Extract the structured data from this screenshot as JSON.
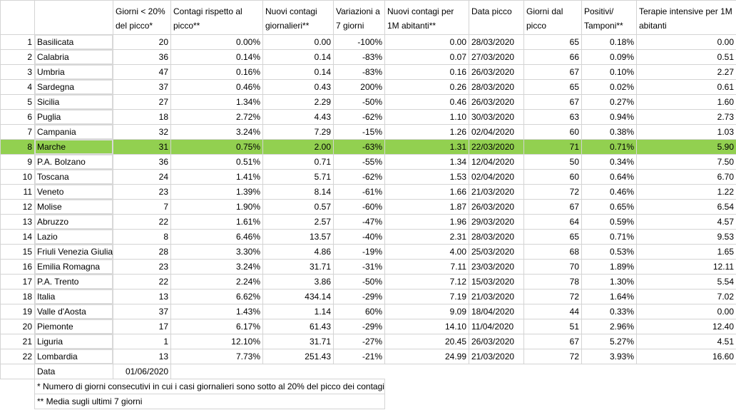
{
  "headers": [
    "",
    "",
    "Giorni < 20% del picco*",
    "Contagi rispetto al picco**",
    "Nuovi contagi giornalieri**",
    "Variazioni a 7 giorni",
    "Nuovi contagi per 1M abitanti**",
    "Data picco",
    "Giorni dal picco",
    "Positivi/ Tamponi**",
    "Terapie intensive per 1M abitanti"
  ],
  "rows": [
    {
      "n": "1",
      "region": "Basilicata",
      "giorni": "20",
      "contagi_picco": "0.00%",
      "nuovi": "0.00",
      "var7": "-100%",
      "per1m": "0.00",
      "data_picco": "28/03/2020",
      "giorni_dal": "65",
      "pos_tamp": "0.18%",
      "ti": "0.00"
    },
    {
      "n": "2",
      "region": "Calabria",
      "giorni": "36",
      "contagi_picco": "0.14%",
      "nuovi": "0.14",
      "var7": "-83%",
      "per1m": "0.07",
      "data_picco": "27/03/2020",
      "giorni_dal": "66",
      "pos_tamp": "0.09%",
      "ti": "0.51"
    },
    {
      "n": "3",
      "region": "Umbria",
      "giorni": "47",
      "contagi_picco": "0.16%",
      "nuovi": "0.14",
      "var7": "-83%",
      "per1m": "0.16",
      "data_picco": "26/03/2020",
      "giorni_dal": "67",
      "pos_tamp": "0.10%",
      "ti": "2.27"
    },
    {
      "n": "4",
      "region": "Sardegna",
      "giorni": "37",
      "contagi_picco": "0.46%",
      "nuovi": "0.43",
      "var7": "200%",
      "per1m": "0.26",
      "data_picco": "28/03/2020",
      "giorni_dal": "65",
      "pos_tamp": "0.02%",
      "ti": "0.61"
    },
    {
      "n": "5",
      "region": "Sicilia",
      "giorni": "27",
      "contagi_picco": "1.34%",
      "nuovi": "2.29",
      "var7": "-50%",
      "per1m": "0.46",
      "data_picco": "26/03/2020",
      "giorni_dal": "67",
      "pos_tamp": "0.27%",
      "ti": "1.60"
    },
    {
      "n": "6",
      "region": "Puglia",
      "giorni": "18",
      "contagi_picco": "2.72%",
      "nuovi": "4.43",
      "var7": "-62%",
      "per1m": "1.10",
      "data_picco": "30/03/2020",
      "giorni_dal": "63",
      "pos_tamp": "0.94%",
      "ti": "2.73"
    },
    {
      "n": "7",
      "region": "Campania",
      "giorni": "32",
      "contagi_picco": "3.24%",
      "nuovi": "7.29",
      "var7": "-15%",
      "per1m": "1.26",
      "data_picco": "02/04/2020",
      "giorni_dal": "60",
      "pos_tamp": "0.38%",
      "ti": "1.03"
    },
    {
      "n": "8",
      "region": "Marche",
      "giorni": "31",
      "contagi_picco": "0.75%",
      "nuovi": "2.00",
      "var7": "-63%",
      "per1m": "1.31",
      "data_picco": "22/03/2020",
      "giorni_dal": "71",
      "pos_tamp": "0.71%",
      "ti": "5.90",
      "highlight": true
    },
    {
      "n": "9",
      "region": "P.A. Bolzano",
      "giorni": "36",
      "contagi_picco": "0.51%",
      "nuovi": "0.71",
      "var7": "-55%",
      "per1m": "1.34",
      "data_picco": "12/04/2020",
      "giorni_dal": "50",
      "pos_tamp": "0.34%",
      "ti": "7.50"
    },
    {
      "n": "10",
      "region": "Toscana",
      "giorni": "24",
      "contagi_picco": "1.41%",
      "nuovi": "5.71",
      "var7": "-62%",
      "per1m": "1.53",
      "data_picco": "02/04/2020",
      "giorni_dal": "60",
      "pos_tamp": "0.64%",
      "ti": "6.70"
    },
    {
      "n": "11",
      "region": "Veneto",
      "giorni": "23",
      "contagi_picco": "1.39%",
      "nuovi": "8.14",
      "var7": "-61%",
      "per1m": "1.66",
      "data_picco": "21/03/2020",
      "giorni_dal": "72",
      "pos_tamp": "0.46%",
      "ti": "1.22"
    },
    {
      "n": "12",
      "region": "Molise",
      "giorni": "7",
      "contagi_picco": "1.90%",
      "nuovi": "0.57",
      "var7": "-60%",
      "per1m": "1.87",
      "data_picco": "26/03/2020",
      "giorni_dal": "67",
      "pos_tamp": "0.65%",
      "ti": "6.54"
    },
    {
      "n": "13",
      "region": "Abruzzo",
      "giorni": "22",
      "contagi_picco": "1.61%",
      "nuovi": "2.57",
      "var7": "-47%",
      "per1m": "1.96",
      "data_picco": "29/03/2020",
      "giorni_dal": "64",
      "pos_tamp": "0.59%",
      "ti": "4.57"
    },
    {
      "n": "14",
      "region": "Lazio",
      "giorni": "8",
      "contagi_picco": "6.46%",
      "nuovi": "13.57",
      "var7": "-40%",
      "per1m": "2.31",
      "data_picco": "28/03/2020",
      "giorni_dal": "65",
      "pos_tamp": "0.71%",
      "ti": "9.53"
    },
    {
      "n": "15",
      "region": "Friuli Venezia Giulia",
      "giorni": "28",
      "contagi_picco": "3.30%",
      "nuovi": "4.86",
      "var7": "-19%",
      "per1m": "4.00",
      "data_picco": "25/03/2020",
      "giorni_dal": "68",
      "pos_tamp": "0.53%",
      "ti": "1.65"
    },
    {
      "n": "16",
      "region": "Emilia Romagna",
      "giorni": "23",
      "contagi_picco": "3.24%",
      "nuovi": "31.71",
      "var7": "-31%",
      "per1m": "7.11",
      "data_picco": "23/03/2020",
      "giorni_dal": "70",
      "pos_tamp": "1.89%",
      "ti": "12.11"
    },
    {
      "n": "17",
      "region": "P.A. Trento",
      "giorni": "22",
      "contagi_picco": "2.24%",
      "nuovi": "3.86",
      "var7": "-50%",
      "per1m": "7.12",
      "data_picco": "15/03/2020",
      "giorni_dal": "78",
      "pos_tamp": "1.30%",
      "ti": "5.54"
    },
    {
      "n": "18",
      "region": "Italia",
      "giorni": "13",
      "contagi_picco": "6.62%",
      "nuovi": "434.14",
      "var7": "-29%",
      "per1m": "7.19",
      "data_picco": "21/03/2020",
      "giorni_dal": "72",
      "pos_tamp": "1.64%",
      "ti": "7.02"
    },
    {
      "n": "19",
      "region": "Valle d'Aosta",
      "giorni": "37",
      "contagi_picco": "1.43%",
      "nuovi": "1.14",
      "var7": "60%",
      "per1m": "9.09",
      "data_picco": "18/04/2020",
      "giorni_dal": "44",
      "pos_tamp": "0.33%",
      "ti": "0.00"
    },
    {
      "n": "20",
      "region": "Piemonte",
      "giorni": "17",
      "contagi_picco": "6.17%",
      "nuovi": "61.43",
      "var7": "-29%",
      "per1m": "14.10",
      "data_picco": "11/04/2020",
      "giorni_dal": "51",
      "pos_tamp": "2.96%",
      "ti": "12.40"
    },
    {
      "n": "21",
      "region": "Liguria",
      "giorni": "1",
      "contagi_picco": "12.10%",
      "nuovi": "31.71",
      "var7": "-27%",
      "per1m": "20.45",
      "data_picco": "26/03/2020",
      "giorni_dal": "67",
      "pos_tamp": "5.27%",
      "ti": "4.51"
    },
    {
      "n": "22",
      "region": "Lombardia",
      "giorni": "13",
      "contagi_picco": "7.73%",
      "nuovi": "251.43",
      "var7": "-21%",
      "per1m": "24.99",
      "data_picco": "21/03/2020",
      "giorni_dal": "72",
      "pos_tamp": "3.93%",
      "ti": "16.60"
    }
  ],
  "data_row": {
    "label": "Data",
    "value": "01/06/2020"
  },
  "notes": [
    "* Numero di giorni consecutivi in cui i casi giornalieri sono sotto al 20% del picco dei contagi",
    "** Media sugli ultimi 7 giorni"
  ],
  "colors": {
    "highlight": "#92d050",
    "grid": "#d4d4d4"
  }
}
